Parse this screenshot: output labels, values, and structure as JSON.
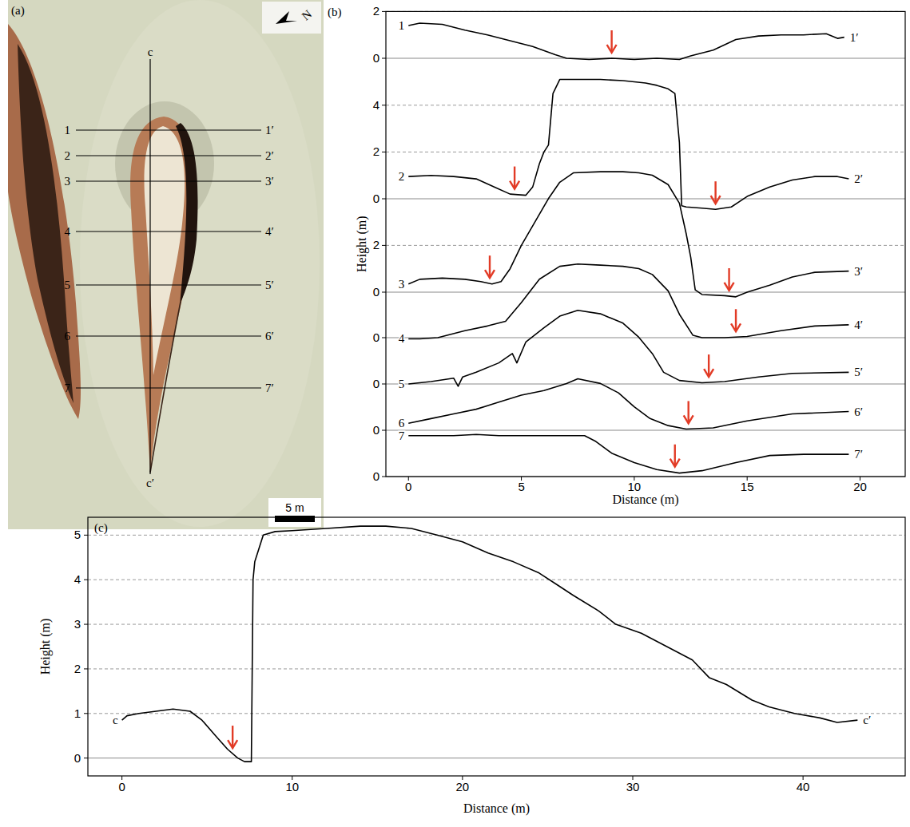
{
  "photo": {
    "label": "(a)",
    "north": "N",
    "scale_bar": "5 m",
    "section": {
      "start": "c",
      "end": "c′"
    },
    "lines": [
      {
        "start": "1",
        "end": "1′"
      },
      {
        "start": "2",
        "end": "2′"
      },
      {
        "start": "3",
        "end": "3′"
      },
      {
        "start": "4",
        "end": "4′"
      },
      {
        "start": "5",
        "end": "5′"
      },
      {
        "start": "6",
        "end": "6′"
      },
      {
        "start": "7",
        "end": "7′"
      }
    ]
  },
  "chart_data": [
    {
      "type": "line",
      "label": "(b)",
      "xlabel": "Distance (m)",
      "ylabel": "Height (m)",
      "xlim": [
        -1,
        22
      ],
      "xticks": [
        0,
        5,
        10,
        15,
        20
      ],
      "grid": true,
      "color": "#000000",
      "series": [
        {
          "name": "1",
          "end_label": "1′",
          "ylim": [
            -0.3,
            2
          ],
          "yticks": [
            0,
            2
          ],
          "x": [
            0,
            0.5,
            1.5,
            2.5,
            3.5,
            4.5,
            5.5,
            6.5,
            7,
            8,
            9,
            10,
            11,
            12,
            12.5,
            13.5,
            14.5,
            15.5,
            16.5,
            17.5,
            18.5,
            19,
            19.3
          ],
          "values": [
            1.4,
            1.5,
            1.45,
            1.2,
            1.0,
            0.75,
            0.5,
            0.15,
            0.0,
            -0.05,
            0,
            -0.05,
            0,
            -0.05,
            0.1,
            0.35,
            0.8,
            0.95,
            1.0,
            1.0,
            1.05,
            0.85,
            0.9
          ],
          "arrows": [
            9
          ]
        },
        {
          "name": "2",
          "end_label": "2′",
          "ylim": [
            -0.6,
            5.3
          ],
          "yticks": [
            0,
            2,
            4
          ],
          "x": [
            0,
            1,
            2,
            3,
            3.8,
            4.5,
            5.2,
            5.5,
            5.8,
            6.0,
            6.2,
            6.4,
            6.7,
            7.5,
            8.5,
            9.5,
            10.5,
            11.0,
            11.5,
            11.8,
            12.0,
            12.1,
            12.3,
            13.0,
            13.6,
            14.3,
            15.0,
            16.0,
            17.0,
            18.0,
            19.0,
            19.5
          ],
          "values": [
            0.95,
            1.0,
            0.95,
            0.85,
            0.5,
            0.2,
            0.15,
            0.5,
            1.5,
            2.0,
            2.3,
            4.5,
            5.1,
            5.1,
            5.1,
            5.05,
            4.95,
            4.85,
            4.7,
            4.5,
            2.4,
            -0.3,
            -0.35,
            -0.4,
            -0.45,
            -0.35,
            0.1,
            0.5,
            0.8,
            0.95,
            0.95,
            0.85
          ],
          "arrows": [
            4.7,
            13.6
          ]
        },
        {
          "name": "3",
          "end_label": "3′",
          "ylim": [
            -0.4,
            5.3
          ],
          "yticks": [
            0,
            2
          ],
          "x": [
            0,
            0.5,
            1.5,
            2.5,
            3.2,
            3.7,
            4.1,
            4.5,
            5.0,
            5.6,
            6.2,
            6.7,
            7.3,
            8.5,
            9.5,
            10.2,
            10.8,
            11.5,
            12.0,
            12.3,
            12.5,
            12.7,
            13.0,
            14.0,
            14.5,
            15.0,
            16.0,
            17.0,
            18.0,
            19.5
          ],
          "values": [
            0.35,
            0.55,
            0.6,
            0.55,
            0.45,
            0.35,
            0.45,
            1.0,
            2.0,
            3.0,
            4.0,
            4.7,
            5.1,
            5.15,
            5.15,
            5.1,
            5.0,
            4.6,
            3.8,
            2.5,
            1.5,
            0.1,
            -0.1,
            -0.15,
            -0.2,
            0.0,
            0.3,
            0.65,
            0.85,
            0.9
          ],
          "arrows": [
            3.6,
            14.2
          ]
        },
        {
          "name": "4",
          "end_label": "4′",
          "ylim": [
            -0.2,
            3.4
          ],
          "yticks": [
            0
          ],
          "x": [
            0,
            0.5,
            1.3,
            2.5,
            3.5,
            4.3,
            5.0,
            5.8,
            6.7,
            7.5,
            8.5,
            9.5,
            10.2,
            10.8,
            11.5,
            12.0,
            12.6,
            13.0,
            14.0,
            15.0,
            16.5,
            18.0,
            19.5
          ],
          "values": [
            -0.05,
            -0.05,
            0.0,
            0.3,
            0.5,
            0.7,
            1.5,
            2.5,
            3.05,
            3.15,
            3.1,
            3.05,
            2.95,
            2.7,
            2.0,
            1.0,
            0.1,
            0.0,
            0.0,
            0.05,
            0.3,
            0.5,
            0.55
          ],
          "arrows": [
            14.5
          ]
        },
        {
          "name": "5",
          "end_label": "5′",
          "ylim": [
            -0.2,
            3.3
          ],
          "yticks": [
            0
          ],
          "x": [
            0,
            1,
            2,
            2.2,
            2.4,
            3,
            4,
            4.6,
            4.8,
            5.2,
            6,
            6.7,
            7.5,
            8.5,
            9.5,
            10.2,
            10.8,
            11.3,
            12,
            13,
            14,
            15.5,
            17,
            19.5
          ],
          "values": [
            0,
            0.1,
            0.25,
            -0.1,
            0.3,
            0.5,
            0.9,
            1.3,
            0.9,
            1.8,
            2.4,
            2.9,
            3.15,
            3.0,
            2.6,
            2.0,
            1.3,
            0.5,
            0.15,
            0.05,
            0.1,
            0.3,
            0.45,
            0.5
          ],
          "arrows": [
            13.3
          ]
        },
        {
          "name": "6",
          "end_label": "6′",
          "ylim": [
            -0.1,
            2.4
          ],
          "yticks": [
            0
          ],
          "x": [
            0,
            1,
            2,
            3,
            4,
            5,
            6,
            7,
            7.5,
            8.5,
            9.3,
            10,
            10.7,
            11.5,
            12.3,
            13.5,
            15,
            17,
            19.5
          ],
          "values": [
            0.3,
            0.5,
            0.7,
            0.9,
            1.2,
            1.5,
            1.7,
            2.0,
            2.2,
            2.0,
            1.6,
            1.0,
            0.5,
            0.2,
            0.05,
            0.1,
            0.4,
            0.7,
            0.8
          ],
          "arrows": [
            12.4
          ]
        },
        {
          "name": "7",
          "end_label": "7′",
          "ylim": [
            0,
            2
          ],
          "yticks": [
            0
          ],
          "x": [
            0,
            1,
            2,
            3,
            4,
            5,
            6,
            7,
            7.8,
            8.3,
            9,
            10,
            11,
            12,
            13,
            14.5,
            16,
            17.5,
            19.5
          ],
          "values": [
            1.75,
            1.75,
            1.75,
            1.8,
            1.75,
            1.75,
            1.75,
            1.75,
            1.75,
            1.5,
            1.0,
            0.6,
            0.3,
            0.15,
            0.25,
            0.6,
            0.9,
            0.95,
            0.95
          ],
          "arrows": [
            11.8
          ]
        }
      ]
    },
    {
      "type": "line",
      "label": "(c)",
      "xlabel": "Distance (m)",
      "ylabel": "Height (m)",
      "xlim": [
        -2,
        46
      ],
      "ylim": [
        -0.4,
        5.4
      ],
      "xticks": [
        0,
        10,
        20,
        30,
        40
      ],
      "yticks": [
        0,
        1,
        2,
        3,
        4,
        5
      ],
      "grid": true,
      "color": "#000000",
      "series": [
        {
          "name": "c",
          "end_label": "c′",
          "x": [
            0,
            0.3,
            1,
            2,
            3,
            4,
            4.7,
            5.5,
            6.2,
            6.8,
            7.2,
            7.6,
            7.7,
            7.8,
            8.3,
            9,
            10,
            12,
            14,
            15.5,
            17,
            18.5,
            20,
            21.5,
            23,
            24.5,
            25.5,
            26.5,
            28,
            29,
            30.5,
            32,
            33.5,
            34.5,
            35.5,
            37,
            38,
            39.5,
            41,
            42,
            43.2
          ],
          "values": [
            0.85,
            0.95,
            1.0,
            1.05,
            1.1,
            1.05,
            0.85,
            0.5,
            0.2,
            0.0,
            -0.08,
            -0.08,
            4.0,
            4.4,
            5.0,
            5.08,
            5.1,
            5.15,
            5.2,
            5.2,
            5.15,
            5.0,
            4.85,
            4.6,
            4.4,
            4.15,
            3.9,
            3.65,
            3.3,
            3.0,
            2.8,
            2.5,
            2.2,
            1.8,
            1.65,
            1.3,
            1.15,
            1.0,
            0.9,
            0.8,
            0.85
          ],
          "arrows": [
            6.5
          ]
        }
      ]
    }
  ]
}
